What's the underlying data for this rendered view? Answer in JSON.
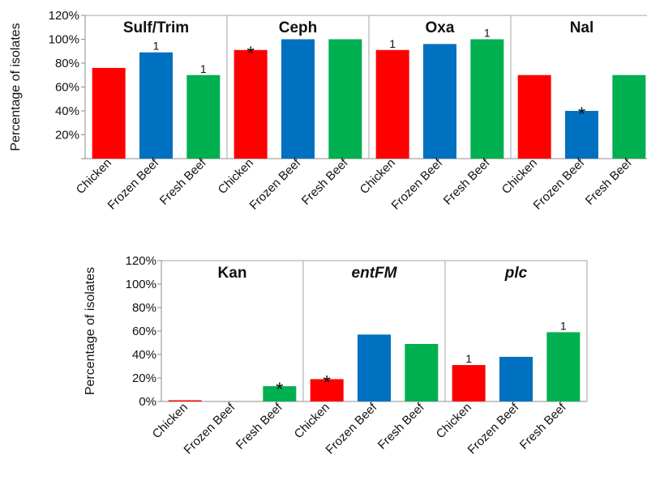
{
  "chart_data": [
    {
      "type": "bar",
      "ylabel": "Percentage of isolates",
      "ylim": [
        0,
        1.2
      ],
      "y_ticks": [
        "",
        "20%",
        "40%",
        "60%",
        "80%",
        "100%",
        "120%"
      ],
      "categories": [
        "Chicken",
        "Frozen Beef",
        "Fresh Beef"
      ],
      "colors": [
        "#ff0000",
        "#0070c0",
        "#00b050"
      ],
      "grid": false,
      "panels": [
        {
          "title": "Sulf/Trim",
          "italic": false,
          "values": [
            0.76,
            0.89,
            0.7
          ],
          "annotations": [
            "",
            "1",
            "1"
          ]
        },
        {
          "title": "Ceph",
          "italic": false,
          "values": [
            0.91,
            1.0,
            1.0
          ],
          "annotations": [
            "*",
            "",
            ""
          ]
        },
        {
          "title": "Oxa",
          "italic": false,
          "values": [
            0.91,
            0.96,
            1.0
          ],
          "annotations": [
            "1",
            "",
            "1"
          ]
        },
        {
          "title": "Nal",
          "italic": false,
          "values": [
            0.7,
            0.4,
            0.7
          ],
          "annotations": [
            "",
            "*",
            ""
          ]
        }
      ]
    },
    {
      "type": "bar",
      "ylabel": "Percentage of isolates",
      "ylim": [
        0,
        1.2
      ],
      "y_ticks": [
        "0%",
        "20%",
        "40%",
        "60%",
        "80%",
        "100%",
        "120%"
      ],
      "categories": [
        "Chicken",
        "Frozen Beef",
        "Fresh Beef"
      ],
      "colors": [
        "#ff0000",
        "#0070c0",
        "#00b050"
      ],
      "grid": false,
      "panels": [
        {
          "title": "Kan",
          "italic": false,
          "values": [
            0.01,
            0.0,
            0.13
          ],
          "annotations": [
            "",
            "",
            "*"
          ]
        },
        {
          "title": "entFM",
          "italic": true,
          "values": [
            0.19,
            0.57,
            0.49
          ],
          "annotations": [
            "*",
            "",
            ""
          ]
        },
        {
          "title": "plc",
          "italic": true,
          "values": [
            0.31,
            0.38,
            0.59
          ],
          "annotations": [
            "1",
            "",
            "1"
          ]
        }
      ]
    }
  ]
}
